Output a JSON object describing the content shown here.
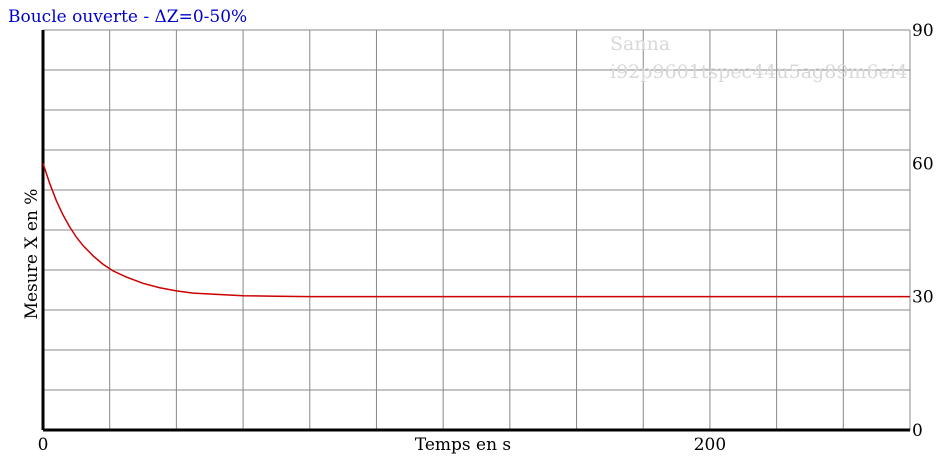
{
  "chart_data": {
    "type": "line",
    "title": "Boucle ouverte - ΔZ=0-50%",
    "xlabel": "Temps en s",
    "ylabel": "Mesure X en %",
    "xlim": [
      0,
      260
    ],
    "ylim": [
      0,
      90
    ],
    "x_ticks": [
      0,
      200
    ],
    "y_ticks": [
      0,
      30,
      60,
      90
    ],
    "grid": true,
    "series": [
      {
        "x": [
          0,
          2,
          4,
          6,
          8,
          10,
          12,
          15,
          18,
          21,
          25,
          30,
          35,
          40,
          45,
          50,
          55,
          60,
          70,
          80,
          100,
          150,
          200,
          260
        ],
        "y": [
          60,
          55.5,
          51.6,
          48.4,
          45.7,
          43.4,
          41.5,
          39.2,
          37.3,
          35.8,
          34.4,
          33.0,
          32.0,
          31.3,
          30.8,
          30.6,
          30.4,
          30.2,
          30.1,
          30.0,
          30.0,
          30.0,
          30.0,
          30.0
        ]
      }
    ],
    "colors": {
      "line": "#cc0000",
      "grid": "#888888",
      "axis": "#000000",
      "title": "#0000cc"
    }
  },
  "watermark": {
    "line1": "Sanna",
    "line2": "i92p9601tspec44u5ag89m6ei4"
  }
}
